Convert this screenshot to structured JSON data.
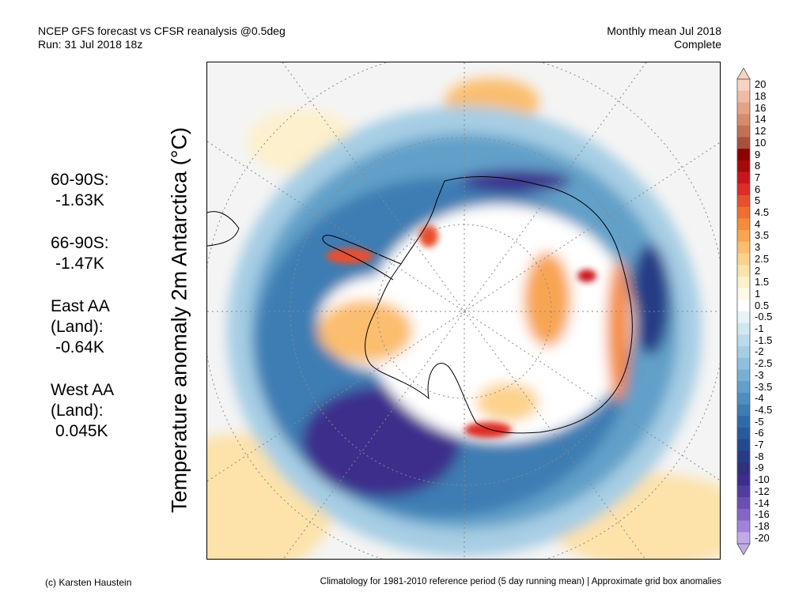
{
  "header": {
    "title_line1": "NCEP GFS forecast vs CFSR reanalysis @0.5deg",
    "title_line2": "Run: 31 Jul 2018 18z",
    "right_line1": "Monthly mean Jul 2018",
    "right_line2": "Complete"
  },
  "map": {
    "vertical_title": "Temperature anomaly 2m Antarctica (°C)"
  },
  "stats": [
    {
      "label": "60-90S:",
      "value": "-1.63K"
    },
    {
      "label": "66-90S:",
      "value": "-1.47K"
    },
    {
      "label": "East AA (Land):",
      "value": "-0.64K"
    },
    {
      "label": "West AA (Land):",
      "value": "0.045K"
    }
  ],
  "colorbar": {
    "labels": [
      "20",
      "18",
      "16",
      "14",
      "12",
      "10",
      "9",
      "8",
      "7",
      "6",
      "5",
      "4.5",
      "4",
      "3.5",
      "3",
      "2.5",
      "2",
      "1.5",
      "1",
      "0.5",
      "-0.5",
      "-1",
      "-1.5",
      "-2",
      "-2.5",
      "-3",
      "-3.5",
      "-4",
      "-4.5",
      "-5",
      "-6",
      "-7",
      "-8",
      "-9",
      "-10",
      "-12",
      "-14",
      "-16",
      "-18",
      "-20"
    ],
    "colors": [
      "#f7d3c3",
      "#eebca6",
      "#e3a486",
      "#d48c6c",
      "#c07055",
      "#a85040",
      "#8b0000",
      "#a50a0a",
      "#c8141e",
      "#dc2d28",
      "#e8502d",
      "#f06e32",
      "#f58c3c",
      "#f8a552",
      "#fbbe6e",
      "#fcd28c",
      "#fde2aa",
      "#fdf0cc",
      "#fef8e6",
      "#ffffff",
      "#e8f2f8",
      "#d2e6f2",
      "#bcdaec",
      "#a6cde4",
      "#8fbfdc",
      "#78b0d3",
      "#62a0c9",
      "#4e8fbe",
      "#3d7db3",
      "#2f6aa6",
      "#285a9a",
      "#234a8e",
      "#283c86",
      "#30307f",
      "#3d2d8c",
      "#523c9e",
      "#6a50b2",
      "#8466c6",
      "#a082d8",
      "#c2aaea"
    ]
  },
  "footer": {
    "left": "(c) Karsten Haustein",
    "right": "Climatology for 1981-2010 reference period (5 day running mean) | Approximate grid box anomalies"
  }
}
